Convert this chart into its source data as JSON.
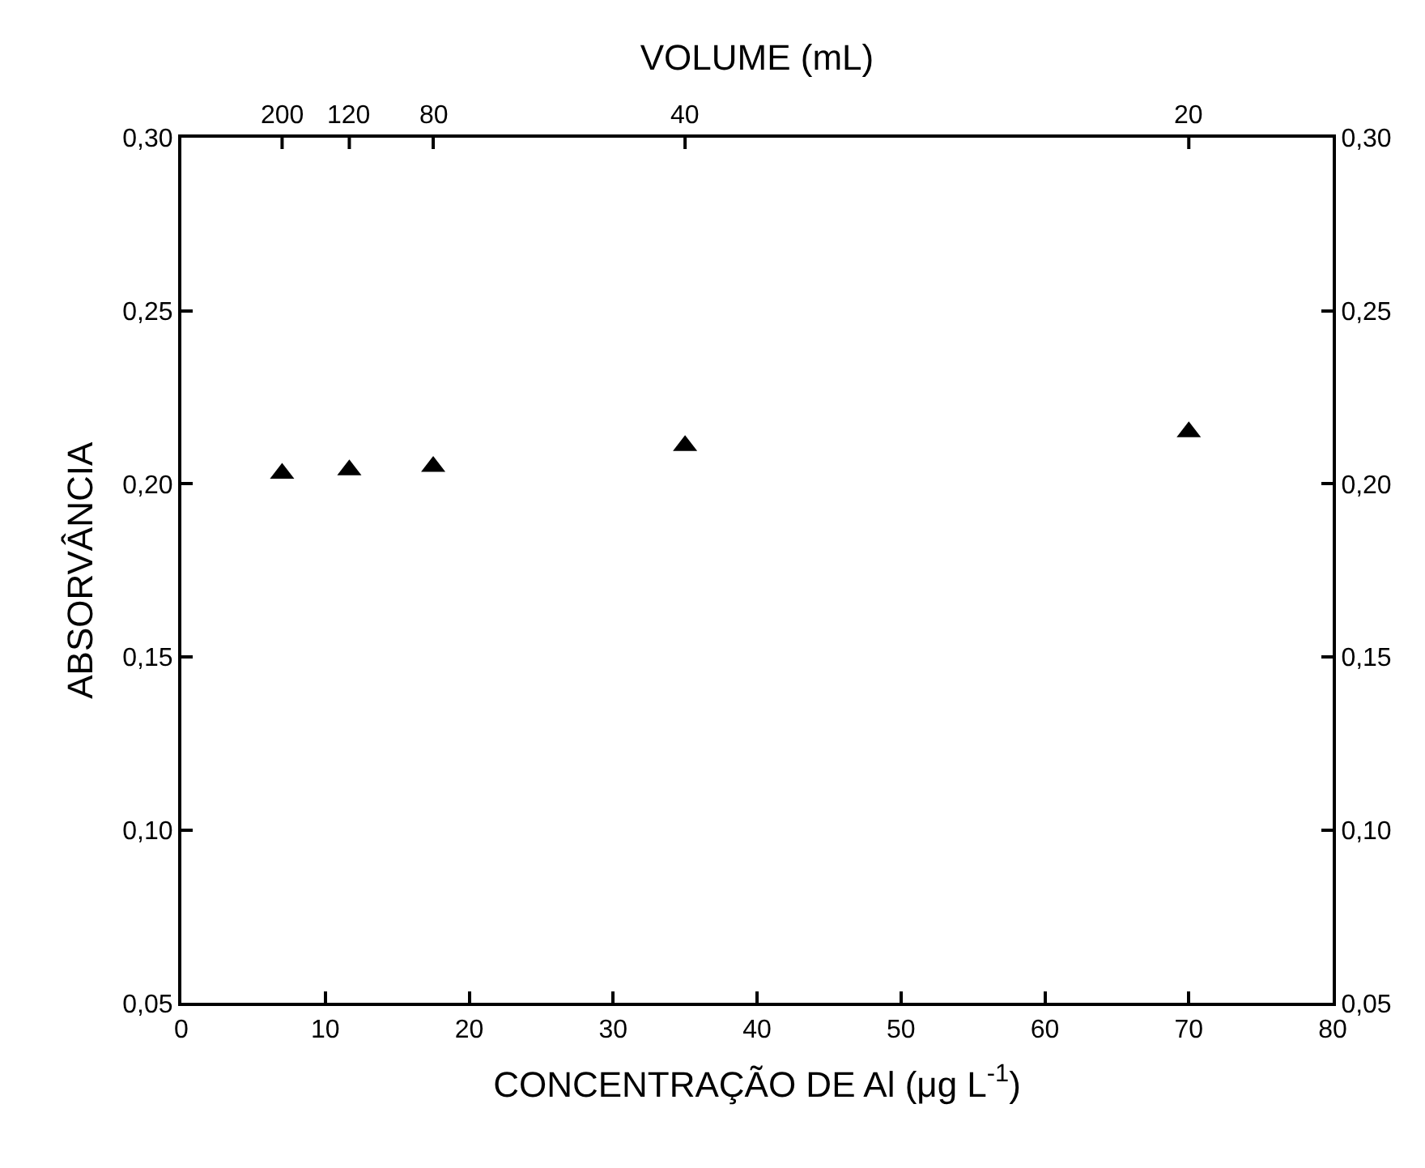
{
  "chart_data": {
    "type": "scatter",
    "xlabel": "CONCENTRAÇÃO DE Al (μg L$^{-1}$)",
    "ylabel": "ABSORVÂNCIA",
    "x2label": "VOLUME (mL)",
    "x": [
      7,
      11.67,
      17.5,
      35,
      70
    ],
    "series": [
      {
        "color": "#000000",
        "values": [
          0.203,
          0.204,
          0.205,
          0.211,
          0.215
        ]
      }
    ],
    "marker": "triangle",
    "xlim": [
      0,
      80
    ],
    "xticks": [
      0,
      10,
      20,
      30,
      40,
      50,
      60,
      70,
      80
    ],
    "annotations": [
      "200",
      "120",
      "80",
      "40",
      "20"
    ],
    "ylim": [
      0.05,
      0.3
    ],
    "yticks": [
      {
        "value": 0.05,
        "label": "0,05"
      },
      {
        "value": 0.1,
        "label": "0,10"
      },
      {
        "value": 0.15,
        "label": "0,15"
      },
      {
        "value": 0.2,
        "label": "0,20"
      },
      {
        "value": 0.25,
        "label": "0,25"
      },
      {
        "value": 0.3,
        "label": "0,30"
      }
    ],
    "y2lim": [
      0.05,
      0.3
    ],
    "y2ticks": [
      {
        "value": 0.05,
        "label": "0,05"
      },
      {
        "value": 0.1,
        "label": "0,10"
      },
      {
        "value": 0.15,
        "label": "0,15"
      },
      {
        "value": 0.2,
        "label": "0,20"
      },
      {
        "value": 0.25,
        "label": "0,25"
      },
      {
        "value": 0.3,
        "label": "0,30"
      }
    ],
    "grid": false,
    "legend": false
  }
}
